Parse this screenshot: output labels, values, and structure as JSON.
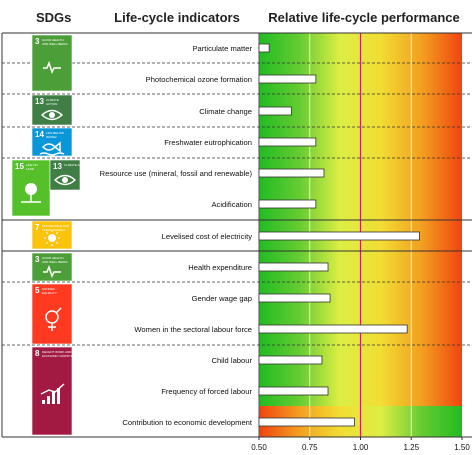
{
  "headers": {
    "sdgs": "SDGs",
    "indicators": "Life-cycle indicators",
    "performance": "Relative life-cycle performance"
  },
  "sdg_icons": [
    {
      "goal": "3",
      "text": "GOOD HEALTH AND WELL-BEING",
      "color": "#4c9f38",
      "icon": "heartbeat-icon"
    },
    {
      "goal": "13",
      "text": "CLIMATE ACTION",
      "color": "#3f7e44",
      "icon": "eye-earth-icon"
    },
    {
      "goal": "14",
      "text": "LIFE BELOW WATER",
      "color": "#0a97d9",
      "icon": "fish-icon"
    },
    {
      "goal": "15",
      "text": "LIFE ON LAND",
      "color": "#56c02b",
      "icon": "tree-icon"
    },
    {
      "goal": "13",
      "text": "CLIMATE ACTION",
      "color": "#3f7e44",
      "icon": "eye-earth-icon"
    },
    {
      "goal": "7",
      "text": "AFFORDABLE AND CLEAN ENERGY",
      "color": "#fcc30b",
      "icon": "sun-power-icon"
    },
    {
      "goal": "3",
      "text": "GOOD HEALTH AND WELL-BEING",
      "color": "#4c9f38",
      "icon": "heartbeat-icon"
    },
    {
      "goal": "5",
      "text": "GENDER EQUALITY",
      "color": "#ff3a21",
      "icon": "gender-icon"
    },
    {
      "goal": "8",
      "text": "DECENT WORK AND ECONOMIC GROWTH",
      "color": "#a21942",
      "icon": "growth-chart-icon"
    }
  ],
  "chart_data": {
    "type": "bar",
    "orientation": "horizontal",
    "categories": [
      "Particulate matter",
      "Photochemical ozone formation",
      "Climate change",
      "Freshwater eutrophication",
      "Resource use (mineral, fossil and renewable)",
      "Acidification",
      "Levelised cost of electricity",
      "Health expenditure",
      "Gender wage gap",
      "Women in the sectoral labour force",
      "Child labour",
      "Frequency of forced labour",
      "Contribution to economic development"
    ],
    "values": [
      0.55,
      0.78,
      0.66,
      0.78,
      0.82,
      0.78,
      1.29,
      0.84,
      0.85,
      1.23,
      0.81,
      0.84,
      0.97
    ],
    "xlim": [
      0.5,
      1.5
    ],
    "xticks": [
      "0.50",
      "0.75",
      "1.00",
      "1.25",
      "1.50"
    ],
    "reference_line": 1.0,
    "bar_color": "#ffffff",
    "bar_edge_color": "#333333",
    "reference_line_color": "#cc2266",
    "background_gradient": [
      "#22bb22",
      "#66cc33",
      "#ddee44",
      "#f2dd33",
      "#f2a020",
      "#f04410"
    ],
    "reversed_gradient_for": [
      "Contribution to economic development"
    ],
    "grid": true
  }
}
